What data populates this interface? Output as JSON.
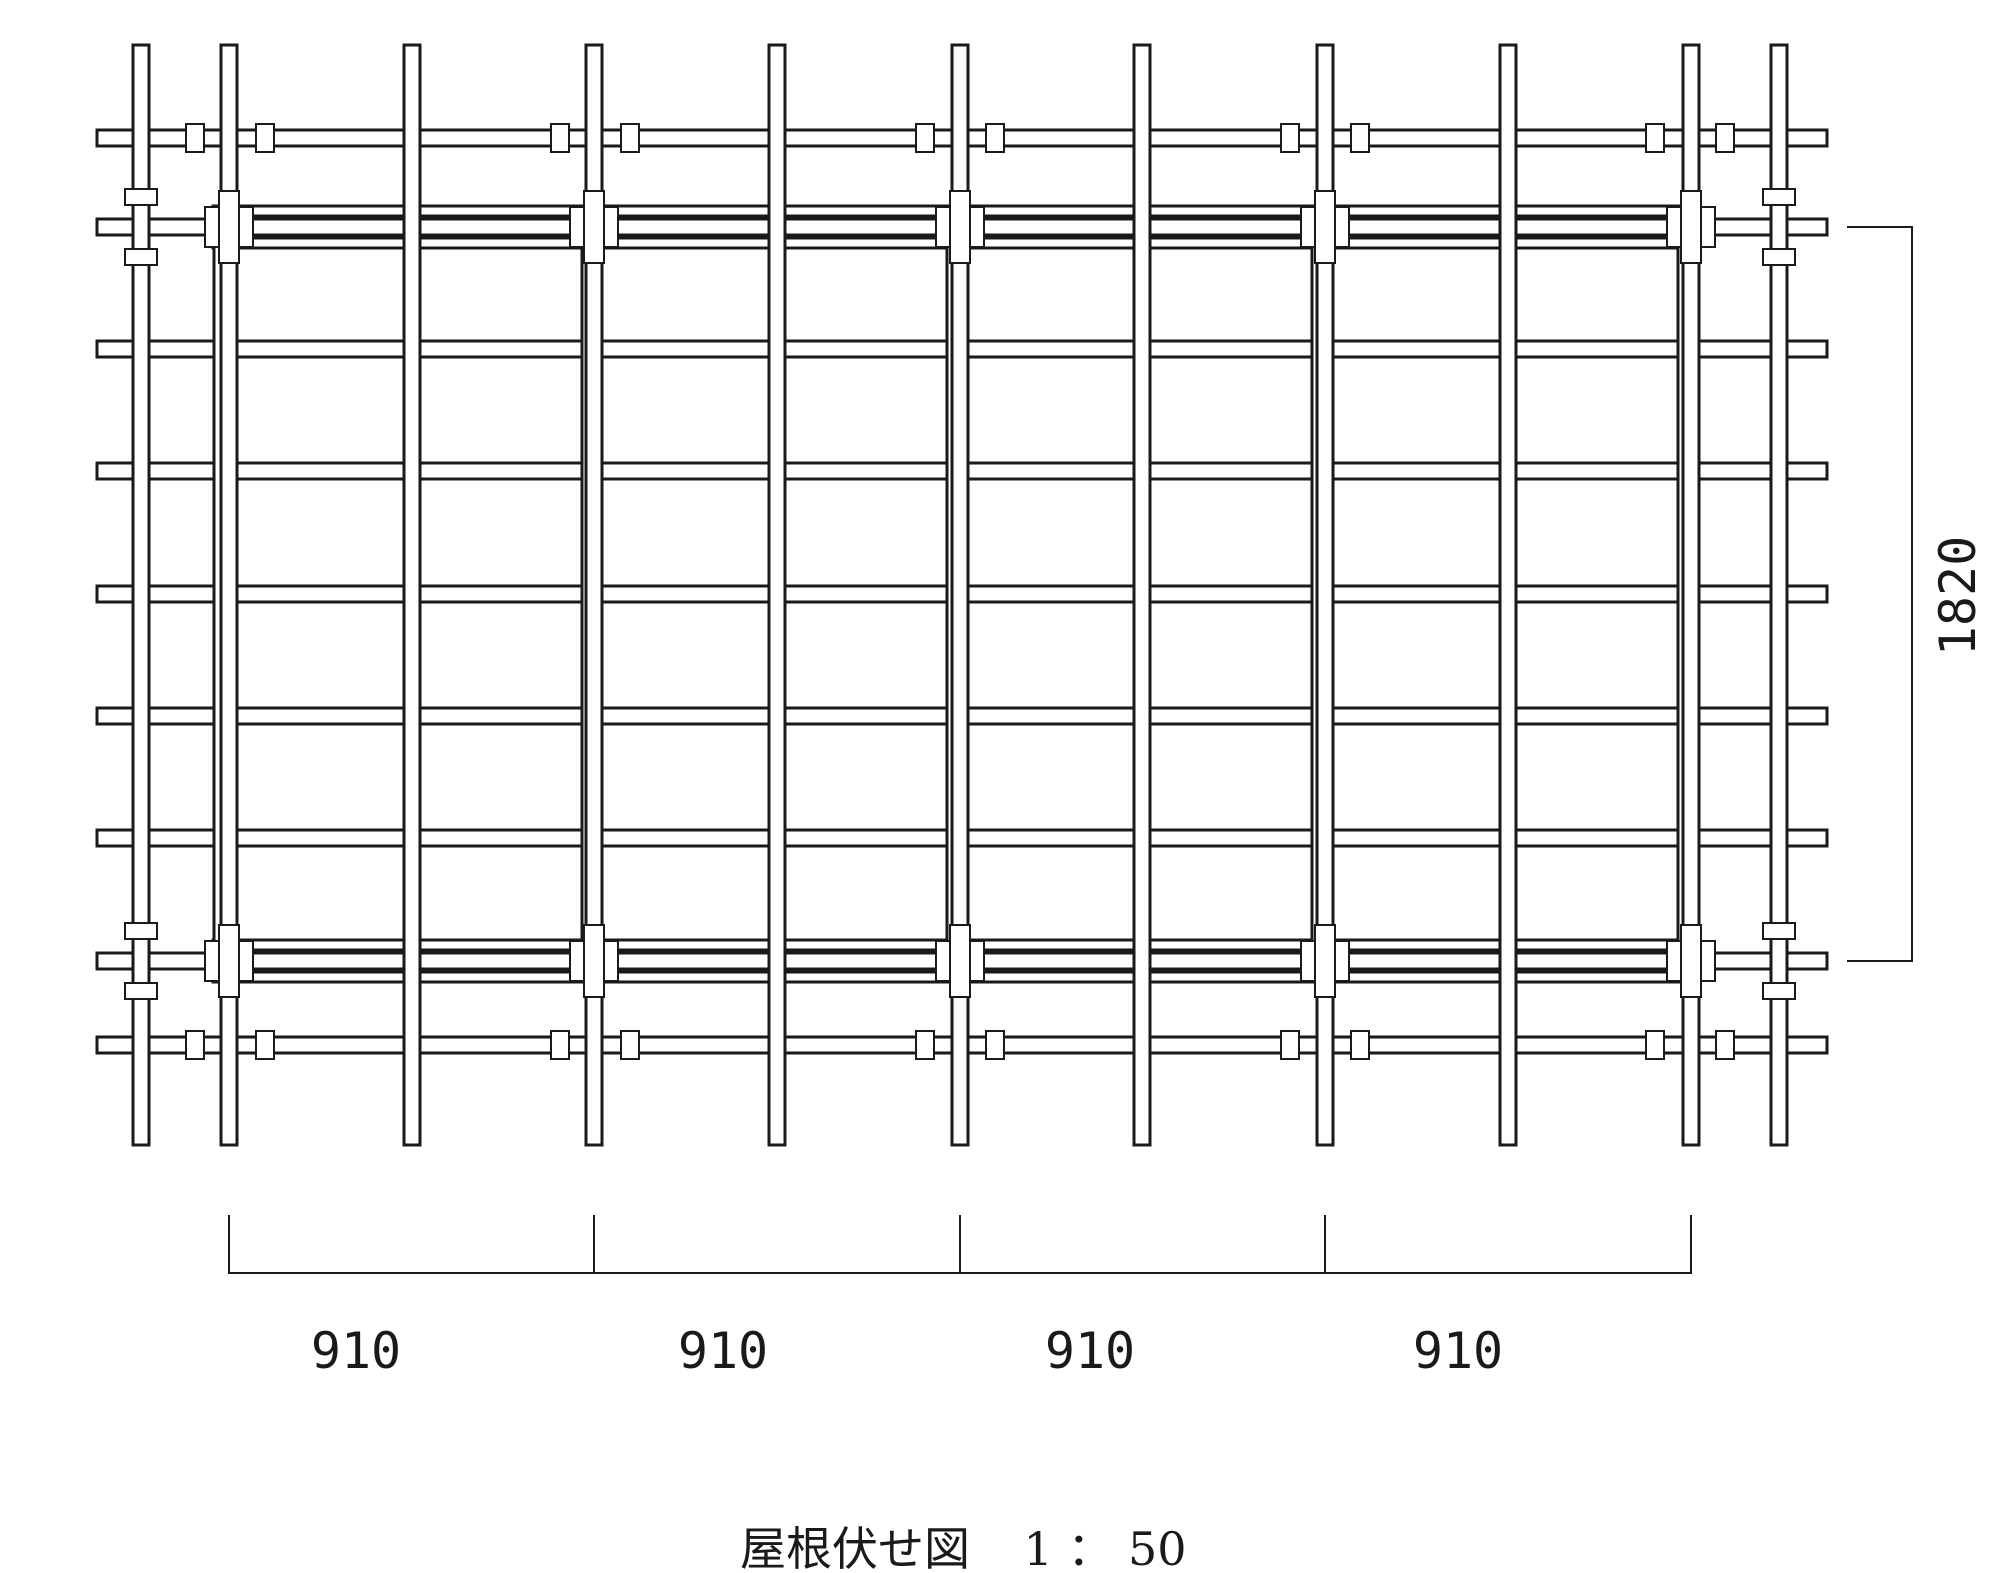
{
  "drawing": {
    "title": "屋根伏せ図",
    "scale": "1 ： 50",
    "dimensions": {
      "horizontal": [
        "910",
        "910",
        "910",
        "910"
      ],
      "vertical": "1820"
    },
    "members": {
      "vertical_count": 12,
      "horizontal_count": 9
    },
    "line_color": "#1a1a1a"
  }
}
